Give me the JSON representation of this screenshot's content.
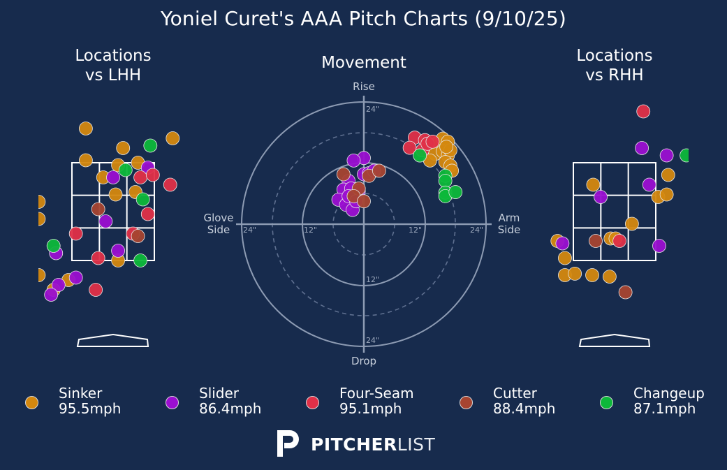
{
  "title": "Yoniel Curet's AAA Pitch Charts (9/10/25)",
  "panels": {
    "lhh_title_1": "Locations",
    "lhh_title_2": "vs LHH",
    "movement_title": "Movement",
    "rhh_title_1": "Locations",
    "rhh_title_2": "vs RHH"
  },
  "movement_axes": {
    "top": "Rise",
    "bottom": "Drop",
    "left_1": "Glove",
    "left_2": "Side",
    "right_1": "Arm",
    "right_2": "Side",
    "ring_labels": [
      "24\"",
      "12\"",
      "12\"",
      "24\"",
      "24\"",
      "12\"",
      "24\""
    ]
  },
  "colors": {
    "background": "#172b4d",
    "Sinker": "#d4880f",
    "Slider": "#9b0fd1",
    "Four-Seam": "#e03048",
    "Cutter": "#a64430",
    "Changeup": "#0db83a"
  },
  "legend": [
    {
      "pitch": "Sinker",
      "speed": "95.5mph"
    },
    {
      "pitch": "Slider",
      "speed": "86.4mph"
    },
    {
      "pitch": "Four-Seam",
      "speed": "95.1mph"
    },
    {
      "pitch": "Cutter",
      "speed": "88.4mph"
    },
    {
      "pitch": "Changeup",
      "speed": "87.1mph"
    }
  ],
  "brand": {
    "bold": "PITCHER",
    "light": "LIST"
  },
  "chart_data": [
    {
      "type": "scatter",
      "title": "Locations vs LHH",
      "xlabel": "",
      "ylabel": "",
      "units": "feet (plate_x, plate_z)",
      "strike_zone": {
        "x": [
          -0.83,
          0.83
        ],
        "z": [
          1.5,
          3.5
        ]
      },
      "points": [
        {
          "pitch": "Sinker",
          "x": -0.55,
          "z": 4.2
        },
        {
          "pitch": "Sinker",
          "x": -0.55,
          "z": 3.55
        },
        {
          "pitch": "Sinker",
          "x": -1.95,
          "z": 2.05
        },
        {
          "pitch": "Sinker",
          "x": -1.5,
          "z": 2.7
        },
        {
          "pitch": "Sinker",
          "x": -1.5,
          "z": 2.35
        },
        {
          "pitch": "Sinker",
          "x": 0.2,
          "z": 3.8
        },
        {
          "pitch": "Sinker",
          "x": 0.1,
          "z": 3.45
        },
        {
          "pitch": "Sinker",
          "x": 0.5,
          "z": 3.5
        },
        {
          "pitch": "Sinker",
          "x": -0.2,
          "z": 3.2
        },
        {
          "pitch": "Sinker",
          "x": 0.05,
          "z": 2.85
        },
        {
          "pitch": "Sinker",
          "x": 0.45,
          "z": 2.9
        },
        {
          "pitch": "Sinker",
          "x": 1.2,
          "z": 4.0
        },
        {
          "pitch": "Sinker",
          "x": 0.1,
          "z": 1.5
        },
        {
          "pitch": "Sinker",
          "x": -1.2,
          "z": 0.9
        },
        {
          "pitch": "Sinker",
          "x": -0.9,
          "z": 1.1
        },
        {
          "pitch": "Sinker",
          "x": -1.5,
          "z": 1.2
        },
        {
          "pitch": "Slider",
          "x": 0.0,
          "z": 3.2
        },
        {
          "pitch": "Slider",
          "x": -0.15,
          "z": 2.3
        },
        {
          "pitch": "Slider",
          "x": 0.1,
          "z": 1.7
        },
        {
          "pitch": "Slider",
          "x": 0.7,
          "z": 3.4
        },
        {
          "pitch": "Slider",
          "x": -1.15,
          "z": 1.65
        },
        {
          "pitch": "Slider",
          "x": -1.1,
          "z": 1.0
        },
        {
          "pitch": "Slider",
          "x": -0.75,
          "z": 1.15
        },
        {
          "pitch": "Slider",
          "x": -1.25,
          "z": 0.8
        },
        {
          "pitch": "Four-Seam",
          "x": 0.55,
          "z": 3.2
        },
        {
          "pitch": "Four-Seam",
          "x": 0.8,
          "z": 3.25
        },
        {
          "pitch": "Four-Seam",
          "x": 1.15,
          "z": 3.05
        },
        {
          "pitch": "Four-Seam",
          "x": 0.7,
          "z": 2.45
        },
        {
          "pitch": "Four-Seam",
          "x": 0.4,
          "z": 2.05
        },
        {
          "pitch": "Four-Seam",
          "x": -0.75,
          "z": 2.05
        },
        {
          "pitch": "Four-Seam",
          "x": -0.3,
          "z": 1.55
        },
        {
          "pitch": "Four-Seam",
          "x": -0.35,
          "z": 0.9
        },
        {
          "pitch": "Cutter",
          "x": -0.3,
          "z": 2.55
        },
        {
          "pitch": "Cutter",
          "x": 0.5,
          "z": 2.0
        },
        {
          "pitch": "Changeup",
          "x": 0.75,
          "z": 3.85
        },
        {
          "pitch": "Changeup",
          "x": 0.25,
          "z": 3.35
        },
        {
          "pitch": "Changeup",
          "x": 0.6,
          "z": 2.75
        },
        {
          "pitch": "Changeup",
          "x": -1.2,
          "z": 1.8
        },
        {
          "pitch": "Changeup",
          "x": 0.55,
          "z": 1.5
        }
      ]
    },
    {
      "type": "scatter",
      "title": "Movement",
      "xlabel": "Glove Side / Arm Side",
      "ylabel": "Drop / Rise",
      "units": "inches (horizontal break, induced vertical break)",
      "rings": [
        12,
        24
      ],
      "points": [
        {
          "pitch": "Sinker",
          "x": 14.5,
          "z": 16.0
        },
        {
          "pitch": "Sinker",
          "x": 15.5,
          "z": 16.8
        },
        {
          "pitch": "Sinker",
          "x": 16.5,
          "z": 16.2
        },
        {
          "pitch": "Sinker",
          "x": 14.0,
          "z": 13.8
        },
        {
          "pitch": "Sinker",
          "x": 15.5,
          "z": 14.3
        },
        {
          "pitch": "Sinker",
          "x": 16.5,
          "z": 13.5
        },
        {
          "pitch": "Sinker",
          "x": 17.0,
          "z": 14.5
        },
        {
          "pitch": "Sinker",
          "x": 16.0,
          "z": 12.2
        },
        {
          "pitch": "Sinker",
          "x": 17.0,
          "z": 11.5
        },
        {
          "pitch": "Sinker",
          "x": 13.0,
          "z": 12.5
        },
        {
          "pitch": "Sinker",
          "x": 17.3,
          "z": 10.5
        },
        {
          "pitch": "Sinker",
          "x": 16.2,
          "z": 15.2
        },
        {
          "pitch": "Slider",
          "x": 0.0,
          "z": 13.0
        },
        {
          "pitch": "Slider",
          "x": -2.0,
          "z": 12.5
        },
        {
          "pitch": "Slider",
          "x": -3.0,
          "z": 8.5
        },
        {
          "pitch": "Slider",
          "x": -4.0,
          "z": 6.8
        },
        {
          "pitch": "Slider",
          "x": -2.5,
          "z": 7.0
        },
        {
          "pitch": "Slider",
          "x": -1.0,
          "z": 6.5
        },
        {
          "pitch": "Slider",
          "x": -5.0,
          "z": 4.8
        },
        {
          "pitch": "Slider",
          "x": -3.5,
          "z": 3.8
        },
        {
          "pitch": "Slider",
          "x": -3.0,
          "z": 5.5
        },
        {
          "pitch": "Slider",
          "x": -2.2,
          "z": 2.8
        },
        {
          "pitch": "Slider",
          "x": -1.5,
          "z": 4.5
        },
        {
          "pitch": "Slider",
          "x": 0.0,
          "z": 9.8
        },
        {
          "pitch": "Slider",
          "x": 1.0,
          "z": 10.0
        },
        {
          "pitch": "Slider",
          "x": 2.0,
          "z": 10.5
        },
        {
          "pitch": "Four-Seam",
          "x": 10.0,
          "z": 17.0
        },
        {
          "pitch": "Four-Seam",
          "x": 12.0,
          "z": 16.5
        },
        {
          "pitch": "Four-Seam",
          "x": 9.0,
          "z": 15.0
        },
        {
          "pitch": "Four-Seam",
          "x": 11.5,
          "z": 14.5
        },
        {
          "pitch": "Four-Seam",
          "x": 12.5,
          "z": 15.8
        },
        {
          "pitch": "Four-Seam",
          "x": 13.5,
          "z": 16.2
        },
        {
          "pitch": "Cutter",
          "x": -4.0,
          "z": 9.8
        },
        {
          "pitch": "Cutter",
          "x": 1.0,
          "z": 9.5
        },
        {
          "pitch": "Cutter",
          "x": 3.0,
          "z": 10.5
        },
        {
          "pitch": "Cutter",
          "x": -1.0,
          "z": 7.0
        },
        {
          "pitch": "Cutter",
          "x": -2.0,
          "z": 5.5
        },
        {
          "pitch": "Cutter",
          "x": 0.0,
          "z": 4.5
        },
        {
          "pitch": "Changeup",
          "x": 11.0,
          "z": 13.5
        },
        {
          "pitch": "Changeup",
          "x": 16.0,
          "z": 9.5
        },
        {
          "pitch": "Changeup",
          "x": 16.0,
          "z": 8.5
        },
        {
          "pitch": "Changeup",
          "x": 16.0,
          "z": 6.2
        },
        {
          "pitch": "Changeup",
          "x": 16.0,
          "z": 5.5
        },
        {
          "pitch": "Changeup",
          "x": 18.0,
          "z": 6.3
        }
      ]
    },
    {
      "type": "scatter",
      "title": "Locations vs RHH",
      "xlabel": "",
      "ylabel": "",
      "units": "feet (plate_x, plate_z)",
      "strike_zone": {
        "x": [
          -0.83,
          0.83
        ],
        "z": [
          1.5,
          3.5
        ]
      },
      "points": [
        {
          "pitch": "Sinker",
          "x": -0.43,
          "z": 3.05
        },
        {
          "pitch": "Sinker",
          "x": 0.35,
          "z": 2.25
        },
        {
          "pitch": "Sinker",
          "x": 0.88,
          "z": 2.8
        },
        {
          "pitch": "Sinker",
          "x": 1.05,
          "z": 2.85
        },
        {
          "pitch": "Sinker",
          "x": 1.08,
          "z": 3.25
        },
        {
          "pitch": "Sinker",
          "x": -0.08,
          "z": 1.95
        },
        {
          "pitch": "Sinker",
          "x": 0.02,
          "z": 1.95
        },
        {
          "pitch": "Sinker",
          "x": -1.15,
          "z": 1.9
        },
        {
          "pitch": "Sinker",
          "x": -1.0,
          "z": 1.55
        },
        {
          "pitch": "Sinker",
          "x": -1.0,
          "z": 1.2
        },
        {
          "pitch": "Sinker",
          "x": -0.8,
          "z": 1.23
        },
        {
          "pitch": "Sinker",
          "x": -0.45,
          "z": 1.2
        },
        {
          "pitch": "Sinker",
          "x": -0.1,
          "z": 1.17
        },
        {
          "pitch": "Sinker",
          "x": -2.3,
          "z": 0.85
        },
        {
          "pitch": "Slider",
          "x": 0.55,
          "z": 3.8
        },
        {
          "pitch": "Slider",
          "x": 1.05,
          "z": 3.65
        },
        {
          "pitch": "Slider",
          "x": -0.28,
          "z": 2.8
        },
        {
          "pitch": "Slider",
          "x": 0.7,
          "z": 3.05
        },
        {
          "pitch": "Slider",
          "x": -1.05,
          "z": 1.85
        },
        {
          "pitch": "Slider",
          "x": 0.9,
          "z": 1.8
        },
        {
          "pitch": "Four-Seam",
          "x": 0.58,
          "z": 4.55
        },
        {
          "pitch": "Four-Seam",
          "x": 0.1,
          "z": 1.9
        },
        {
          "pitch": "Cutter",
          "x": -0.38,
          "z": 1.9
        },
        {
          "pitch": "Cutter",
          "x": 0.22,
          "z": 0.85
        },
        {
          "pitch": "Changeup",
          "x": 1.45,
          "z": 3.65
        }
      ]
    }
  ]
}
